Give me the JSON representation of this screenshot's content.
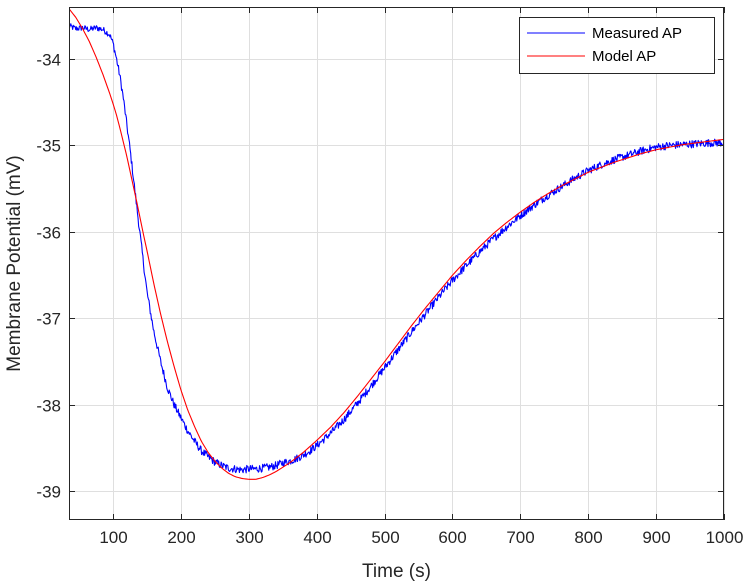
{
  "chart_data": {
    "type": "line",
    "xlabel": "Time (s)",
    "ylabel": "Membrane Potential (mV)",
    "xlim": [
      35,
      1000
    ],
    "ylim": [
      -39.33,
      -33.4
    ],
    "x_ticks": [
      100,
      200,
      300,
      400,
      500,
      600,
      700,
      800,
      900,
      1000
    ],
    "y_ticks": [
      -39,
      -38,
      -37,
      -36,
      -35,
      -34
    ],
    "grid": true,
    "legend_position": "top-right",
    "series": [
      {
        "name": "Measured AP",
        "color": "#0000ff",
        "noisy": true,
        "x": [
          35,
          45,
          55,
          65,
          75,
          85,
          95,
          100,
          105,
          110,
          115,
          120,
          125,
          130,
          135,
          140,
          145,
          150,
          160,
          170,
          180,
          190,
          200,
          210,
          220,
          230,
          240,
          250,
          260,
          270,
          280,
          290,
          300,
          310,
          320,
          330,
          340,
          350,
          360,
          370,
          380,
          390,
          400,
          420,
          440,
          460,
          480,
          500,
          520,
          540,
          560,
          580,
          600,
          620,
          640,
          660,
          680,
          700,
          720,
          740,
          760,
          780,
          800,
          820,
          840,
          860,
          880,
          900,
          920,
          940,
          960,
          980,
          1000
        ],
        "y": [
          -33.62,
          -33.65,
          -33.64,
          -33.66,
          -33.64,
          -33.66,
          -33.72,
          -33.82,
          -34.0,
          -34.2,
          -34.45,
          -34.75,
          -35.05,
          -35.38,
          -35.72,
          -36.05,
          -36.38,
          -36.7,
          -37.15,
          -37.5,
          -37.8,
          -38.0,
          -38.15,
          -38.3,
          -38.42,
          -38.53,
          -38.6,
          -38.66,
          -38.7,
          -38.73,
          -38.74,
          -38.75,
          -38.74,
          -38.74,
          -38.73,
          -38.72,
          -38.7,
          -38.67,
          -38.65,
          -38.62,
          -38.58,
          -38.53,
          -38.47,
          -38.33,
          -38.17,
          -37.98,
          -37.78,
          -37.57,
          -37.36,
          -37.15,
          -36.95,
          -36.75,
          -36.56,
          -36.39,
          -36.23,
          -36.08,
          -35.94,
          -35.81,
          -35.69,
          -35.58,
          -35.48,
          -35.38,
          -35.29,
          -35.22,
          -35.16,
          -35.11,
          -35.06,
          -35.02,
          -35.0,
          -34.99,
          -34.98,
          -34.97,
          -34.97
        ]
      },
      {
        "name": "Model AP",
        "color": "#ff0000",
        "noisy": false,
        "x": [
          35,
          45,
          55,
          65,
          75,
          85,
          95,
          100,
          105,
          110,
          115,
          120,
          125,
          130,
          135,
          140,
          145,
          150,
          160,
          170,
          180,
          190,
          200,
          210,
          220,
          230,
          240,
          250,
          260,
          270,
          280,
          290,
          300,
          310,
          320,
          330,
          340,
          350,
          360,
          370,
          380,
          390,
          400,
          420,
          440,
          460,
          480,
          500,
          520,
          540,
          560,
          580,
          600,
          620,
          640,
          660,
          680,
          700,
          720,
          740,
          760,
          780,
          800,
          820,
          840,
          860,
          880,
          900,
          920,
          940,
          960,
          980,
          1000
        ],
        "y": [
          -33.42,
          -33.52,
          -33.65,
          -33.8,
          -33.98,
          -34.18,
          -34.4,
          -34.52,
          -34.65,
          -34.8,
          -34.96,
          -35.12,
          -35.3,
          -35.48,
          -35.66,
          -35.85,
          -36.04,
          -36.22,
          -36.6,
          -36.95,
          -37.27,
          -37.56,
          -37.83,
          -38.06,
          -38.25,
          -38.42,
          -38.55,
          -38.65,
          -38.73,
          -38.79,
          -38.83,
          -38.85,
          -38.86,
          -38.86,
          -38.84,
          -38.81,
          -38.77,
          -38.72,
          -38.67,
          -38.61,
          -38.55,
          -38.48,
          -38.41,
          -38.26,
          -38.09,
          -37.9,
          -37.7,
          -37.5,
          -37.29,
          -37.08,
          -36.88,
          -36.69,
          -36.5,
          -36.33,
          -36.17,
          -36.02,
          -35.89,
          -35.77,
          -35.66,
          -35.56,
          -35.47,
          -35.39,
          -35.31,
          -35.25,
          -35.19,
          -35.14,
          -35.09,
          -35.05,
          -35.02,
          -34.99,
          -34.97,
          -34.95,
          -34.93
        ]
      }
    ]
  }
}
